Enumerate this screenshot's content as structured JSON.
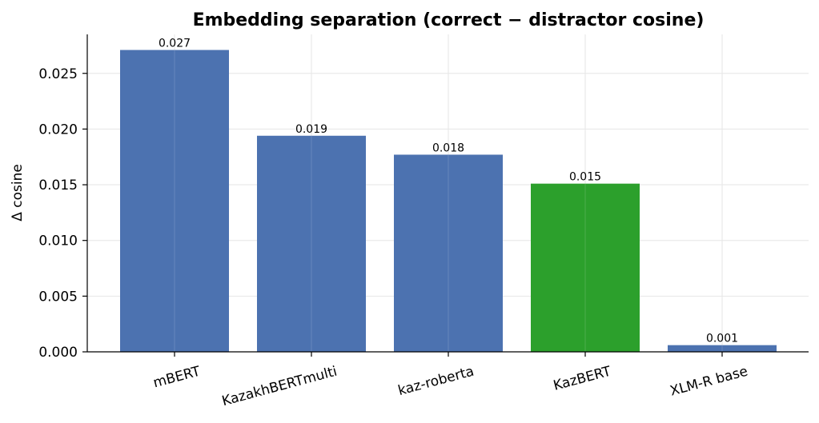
{
  "chart_data": {
    "type": "bar",
    "title": "Embedding separation (correct − distractor cosine)",
    "xlabel": "",
    "ylabel": "Δ cosine",
    "categories": [
      "mBERT",
      "KazakhBERTmulti",
      "kaz-roberta",
      "KazBERT",
      "XLM-R base"
    ],
    "values": [
      0.0271,
      0.0194,
      0.0177,
      0.0151,
      0.0006
    ],
    "data_labels": [
      "0.027",
      "0.019",
      "0.018",
      "0.015",
      "0.001"
    ],
    "bar_colors": [
      "#4c72b0",
      "#4c72b0",
      "#4c72b0",
      "#2ca02c",
      "#4c72b0"
    ],
    "highlighted_category": "KazBERT",
    "ylim": [
      0,
      0.0285
    ],
    "yticks": [
      0.0,
      0.005,
      0.01,
      0.015,
      0.02,
      0.025
    ],
    "ytick_labels": [
      "0.000",
      "0.005",
      "0.010",
      "0.015",
      "0.020",
      "0.025"
    ],
    "grid": true,
    "xtick_rotation_deg": -15
  }
}
